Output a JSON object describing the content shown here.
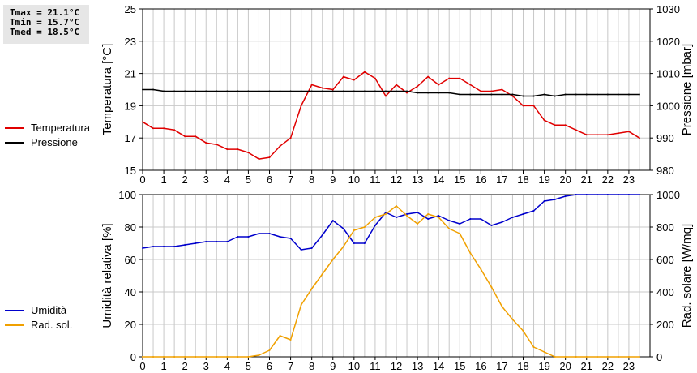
{
  "stats": {
    "tmax": "Tmax = 21.1°C",
    "tmin": "Tmin = 15.7°C",
    "tmed": "Tmed = 18.5°C"
  },
  "colors": {
    "temperature": "#e00000",
    "pressure": "#000000",
    "humidity": "#0000cc",
    "radiation": "#f0a000",
    "grid": "#c8c8c8"
  },
  "chart_data": [
    {
      "type": "line",
      "x_ticks": [
        "0",
        "1",
        "2",
        "3",
        "4",
        "5",
        "6",
        "7",
        "8",
        "9",
        "10",
        "11",
        "12",
        "13",
        "14",
        "15",
        "16",
        "17",
        "18",
        "19",
        "20",
        "21",
        "22",
        "23"
      ],
      "xlim": [
        0,
        24
      ],
      "ylabel": "Temperatura [°C]",
      "ylim": [
        15,
        25
      ],
      "y_ticks": [
        "15",
        "17",
        "19",
        "21",
        "23",
        "25"
      ],
      "y2label": "Pressione [mbar]",
      "y2lim": [
        980,
        1030
      ],
      "y2_ticks": [
        "980",
        "990",
        "1000",
        "1010",
        "1020",
        "1030"
      ],
      "legend": [
        "Temperatura",
        "Pressione"
      ],
      "legend_position": "left",
      "grid": true,
      "series": [
        {
          "name": "Temperatura",
          "axis": "left",
          "x": [
            0,
            0.5,
            1,
            1.5,
            2,
            2.5,
            3,
            3.5,
            4,
            4.5,
            5,
            5.5,
            6,
            6.5,
            7,
            7.5,
            8,
            8.5,
            9,
            9.5,
            10,
            10.5,
            11,
            11.5,
            12,
            12.5,
            13,
            13.5,
            14,
            14.5,
            15,
            15.5,
            16,
            16.5,
            17,
            17.5,
            18,
            18.5,
            19,
            19.5,
            20,
            20.5,
            21,
            21.5,
            22,
            22.5,
            23,
            23.5
          ],
          "values": [
            18.0,
            17.6,
            17.6,
            17.5,
            17.1,
            17.1,
            16.7,
            16.6,
            16.3,
            16.3,
            16.1,
            15.7,
            15.8,
            16.5,
            17.0,
            19.0,
            20.3,
            20.1,
            20.0,
            20.8,
            20.6,
            21.1,
            20.7,
            19.6,
            20.3,
            19.8,
            20.2,
            20.8,
            20.3,
            20.7,
            20.7,
            20.3,
            19.9,
            19.9,
            20.0,
            19.6,
            19.0,
            19.0,
            18.1,
            17.8,
            17.8,
            17.5,
            17.2,
            17.2,
            17.2,
            17.3,
            17.4,
            17.0
          ]
        },
        {
          "name": "Pressione",
          "axis": "right",
          "x": [
            0,
            0.5,
            1,
            1.5,
            2,
            2.5,
            3,
            3.5,
            4,
            4.5,
            5,
            5.5,
            6,
            6.5,
            7,
            7.5,
            8,
            8.5,
            9,
            9.5,
            10,
            10.5,
            11,
            11.5,
            12,
            12.5,
            13,
            13.5,
            14,
            14.5,
            15,
            15.5,
            16,
            16.5,
            17,
            17.5,
            18,
            18.5,
            19,
            19.5,
            20,
            20.5,
            21,
            21.5,
            22,
            22.5,
            23,
            23.5
          ],
          "values": [
            1005,
            1005,
            1004.5,
            1004.5,
            1004.5,
            1004.5,
            1004.5,
            1004.5,
            1004.5,
            1004.5,
            1004.5,
            1004.5,
            1004.5,
            1004.5,
            1004.5,
            1004.5,
            1004.5,
            1004.5,
            1004.5,
            1004.5,
            1004.5,
            1004.5,
            1004.5,
            1004.5,
            1004.5,
            1004.5,
            1004,
            1004,
            1004,
            1004,
            1003.5,
            1003.5,
            1003.5,
            1003.5,
            1003.5,
            1003.5,
            1003,
            1003,
            1003.5,
            1003,
            1003.5,
            1003.5,
            1003.5,
            1003.5,
            1003.5,
            1003.5,
            1003.5,
            1003.5
          ]
        }
      ]
    },
    {
      "type": "line",
      "x_ticks": [
        "0",
        "1",
        "2",
        "3",
        "4",
        "5",
        "6",
        "7",
        "8",
        "9",
        "10",
        "11",
        "12",
        "13",
        "14",
        "15",
        "16",
        "17",
        "18",
        "19",
        "20",
        "21",
        "22",
        "23"
      ],
      "xlim": [
        0,
        24
      ],
      "ylabel": "Umidità relativa [%]",
      "ylim": [
        0,
        100
      ],
      "y_ticks": [
        "0",
        "20",
        "40",
        "60",
        "80",
        "100"
      ],
      "y2label": "Rad. solare [W/mq]",
      "y2lim": [
        0,
        1000
      ],
      "y2_ticks": [
        "0",
        "200",
        "400",
        "600",
        "800",
        "1000"
      ],
      "legend": [
        "Umidità",
        "Rad. sol."
      ],
      "legend_position": "left",
      "grid": true,
      "series": [
        {
          "name": "Umidità",
          "axis": "left",
          "x": [
            0,
            0.5,
            1,
            1.5,
            2,
            2.5,
            3,
            3.5,
            4,
            4.5,
            5,
            5.5,
            6,
            6.5,
            7,
            7.5,
            8,
            8.5,
            9,
            9.5,
            10,
            10.5,
            11,
            11.5,
            12,
            12.5,
            13,
            13.5,
            14,
            14.5,
            15,
            15.5,
            16,
            16.5,
            17,
            17.5,
            18,
            18.5,
            19,
            19.5,
            20,
            20.5,
            21,
            21.5,
            22,
            22.5,
            23,
            23.5
          ],
          "values": [
            67,
            68,
            68,
            68,
            69,
            70,
            71,
            71,
            71,
            74,
            74,
            76,
            76,
            74,
            73,
            66,
            67,
            75,
            84,
            79,
            70,
            70,
            81,
            89,
            86,
            88,
            89,
            85,
            87,
            84,
            82,
            85,
            85,
            81,
            83,
            86,
            88,
            90,
            96,
            97,
            99,
            100,
            100,
            100,
            100,
            100,
            100,
            100
          ]
        },
        {
          "name": "Rad. sol.",
          "axis": "right",
          "x": [
            0,
            0.5,
            1,
            1.5,
            2,
            2.5,
            3,
            3.5,
            4,
            4.5,
            5,
            5.5,
            6,
            6.5,
            7,
            7.5,
            8,
            8.5,
            9,
            9.5,
            10,
            10.5,
            11,
            11.5,
            12,
            12.5,
            13,
            13.5,
            14,
            14.5,
            15,
            15.5,
            16,
            16.5,
            17,
            17.5,
            18,
            18.5,
            19,
            19.5,
            20,
            20.5,
            21,
            21.5,
            22,
            22.5,
            23,
            23.5
          ],
          "values": [
            0,
            0,
            0,
            0,
            0,
            0,
            0,
            0,
            0,
            0,
            0,
            10,
            40,
            130,
            105,
            320,
            420,
            510,
            600,
            680,
            780,
            800,
            860,
            880,
            930,
            870,
            820,
            880,
            860,
            790,
            760,
            640,
            540,
            430,
            310,
            230,
            160,
            60,
            30,
            0,
            0,
            0,
            0,
            0,
            0,
            0,
            0,
            0
          ]
        }
      ]
    }
  ]
}
